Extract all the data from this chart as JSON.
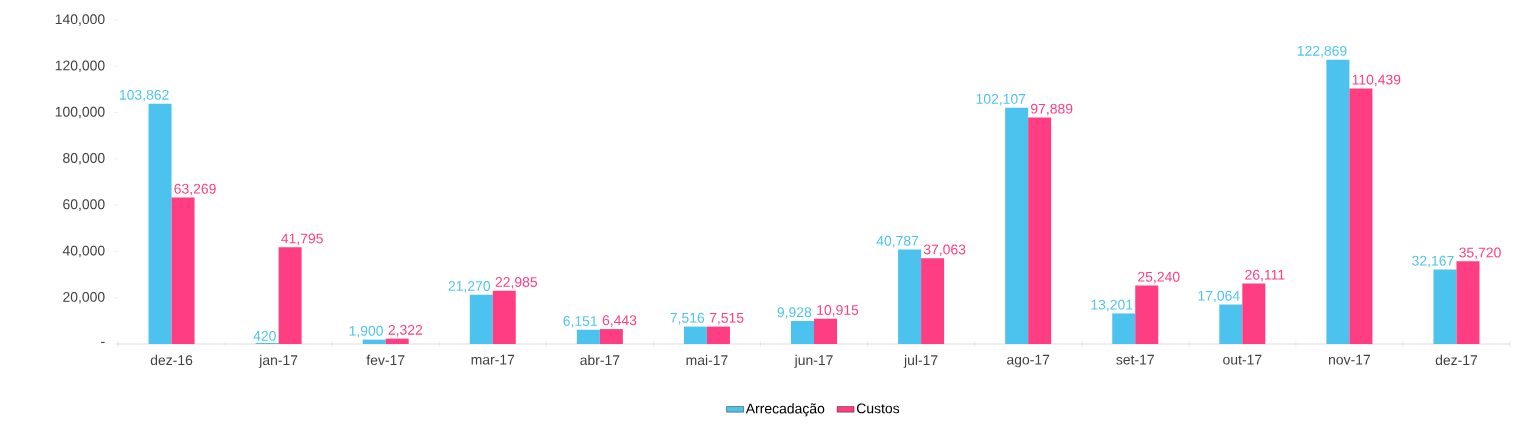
{
  "chart_data": {
    "type": "bar",
    "categories": [
      "dez-16",
      "jan-17",
      "fev-17",
      "mar-17",
      "abr-17",
      "mai-17",
      "jun-17",
      "jul-17",
      "ago-17",
      "set-17",
      "out-17",
      "nov-17",
      "dez-17"
    ],
    "series": [
      {
        "name": "Arrecadação",
        "color": "#4cc3ee",
        "values": [
          103862,
          420,
          1900,
          21270,
          6151,
          7516,
          9928,
          40787,
          102107,
          13201,
          17064,
          122869,
          32167
        ],
        "value_labels": [
          "103,862",
          "420",
          "1,900",
          "21,270",
          "6,151",
          "7,516",
          "9,928",
          "40,787",
          "102,107",
          "13,201",
          "17,064",
          "122,869",
          "32,167"
        ]
      },
      {
        "name": "Custos",
        "color": "#fe3d83",
        "values": [
          63269,
          41795,
          2322,
          22985,
          6443,
          7515,
          10915,
          37063,
          97889,
          25240,
          26111,
          110439,
          35720
        ],
        "value_labels": [
          "63,269",
          "41,795",
          "2,322",
          "22,985",
          "6,443",
          "7,515",
          "10,915",
          "37,063",
          "97,889",
          "25,240",
          "26,111",
          "110,439",
          "35,720"
        ]
      }
    ],
    "ylim": [
      0,
      140000
    ],
    "yticks": [
      {
        "value": 0,
        "label": "-"
      },
      {
        "value": 20000,
        "label": "20,000"
      },
      {
        "value": 40000,
        "label": "40,000"
      },
      {
        "value": 60000,
        "label": "60,000"
      },
      {
        "value": 80000,
        "label": "80,000"
      },
      {
        "value": 100000,
        "label": "100,000"
      },
      {
        "value": 120000,
        "label": "120,000"
      },
      {
        "value": 140000,
        "label": "140,000"
      }
    ],
    "legend": "bottom",
    "grid": false
  }
}
